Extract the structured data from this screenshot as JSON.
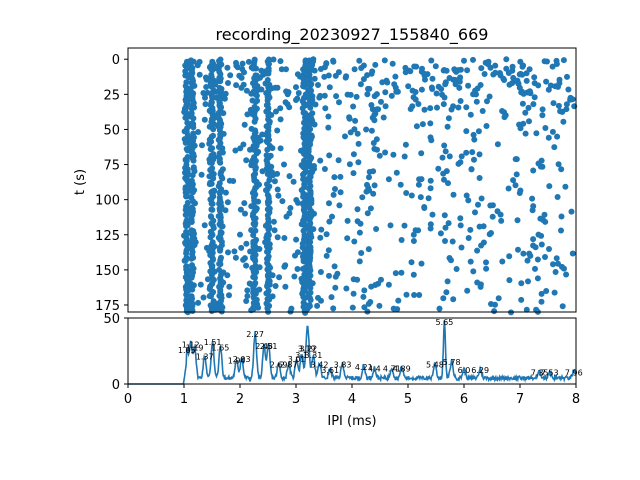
{
  "chart_data": [
    {
      "type": "scatter",
      "title": "recording_20230927_155840_669",
      "xlabel": "",
      "ylabel": "t (s)",
      "xlim": [
        0,
        8
      ],
      "ylim": [
        180,
        -8
      ],
      "y_inverted": true,
      "yticks": [
        0,
        25,
        50,
        75,
        100,
        125,
        150,
        175
      ],
      "color": "#1f77b4",
      "marker": "circle",
      "note": "scatter of inter-pulse intervals over time; dense columns near IPI 1.05, 1.5, 2.27, 3.2 ms",
      "dense_columns_ms": [
        1.05,
        1.15,
        1.5,
        1.65,
        2.27,
        2.5,
        3.15,
        3.25
      ]
    },
    {
      "type": "line",
      "title": "",
      "xlabel": "IPI (ms)",
      "ylabel": "",
      "xlim": [
        0,
        8
      ],
      "ylim": [
        0,
        50
      ],
      "xticks": [
        0,
        1,
        2,
        3,
        4,
        5,
        6,
        7,
        8
      ],
      "yticks": [
        0,
        50
      ],
      "color": "#1f77b4",
      "peaks": [
        {
          "x": 1.05,
          "y": 22
        },
        {
          "x": 1.12,
          "y": 26
        },
        {
          "x": 1.19,
          "y": 24
        },
        {
          "x": 1.37,
          "y": 17
        },
        {
          "x": 1.51,
          "y": 28
        },
        {
          "x": 1.65,
          "y": 24
        },
        {
          "x": 1.94,
          "y": 14
        },
        {
          "x": 2.03,
          "y": 15
        },
        {
          "x": 2.27,
          "y": 34
        },
        {
          "x": 2.43,
          "y": 25
        },
        {
          "x": 2.51,
          "y": 25
        },
        {
          "x": 2.69,
          "y": 11
        },
        {
          "x": 2.87,
          "y": 11
        },
        {
          "x": 3.01,
          "y": 15
        },
        {
          "x": 3.1,
          "y": 18
        },
        {
          "x": 3.19,
          "y": 23
        },
        {
          "x": 3.22,
          "y": 23
        },
        {
          "x": 3.31,
          "y": 18
        },
        {
          "x": 3.42,
          "y": 11
        },
        {
          "x": 3.61,
          "y": 7
        },
        {
          "x": 3.83,
          "y": 11
        },
        {
          "x": 4.21,
          "y": 9
        },
        {
          "x": 4.4,
          "y": 8
        },
        {
          "x": 4.71,
          "y": 8
        },
        {
          "x": 4.89,
          "y": 8
        },
        {
          "x": 5.48,
          "y": 11
        },
        {
          "x": 5.65,
          "y": 43
        },
        {
          "x": 5.78,
          "y": 13
        },
        {
          "x": 6.0,
          "y": 7
        },
        {
          "x": 6.29,
          "y": 7
        },
        {
          "x": 7.35,
          "y": 5
        },
        {
          "x": 7.53,
          "y": 5
        },
        {
          "x": 7.96,
          "y": 5
        }
      ],
      "peak_labels": [
        {
          "x": 1.05,
          "text": "1.05"
        },
        {
          "x": 1.12,
          "text": "1.12"
        },
        {
          "x": 1.19,
          "text": "1.19"
        },
        {
          "x": 1.37,
          "text": "1.37"
        },
        {
          "x": 1.51,
          "text": "1.51"
        },
        {
          "x": 1.65,
          "text": "1.65"
        },
        {
          "x": 1.94,
          "text": "1.94"
        },
        {
          "x": 2.03,
          "text": "2.03"
        },
        {
          "x": 2.27,
          "text": "2.27"
        },
        {
          "x": 2.43,
          "text": "2.43"
        },
        {
          "x": 2.51,
          "text": "2.51"
        },
        {
          "x": 2.69,
          "text": "2.69"
        },
        {
          "x": 2.87,
          "text": "2.87"
        },
        {
          "x": 3.01,
          "text": "3.01"
        },
        {
          "x": 3.1,
          "text": "3.1"
        },
        {
          "x": 3.19,
          "text": "3.19"
        },
        {
          "x": 3.22,
          "text": "3.22"
        },
        {
          "x": 3.31,
          "text": "3.31"
        },
        {
          "x": 3.42,
          "text": "3.42"
        },
        {
          "x": 3.61,
          "text": "3.61"
        },
        {
          "x": 3.83,
          "text": "3.83"
        },
        {
          "x": 4.21,
          "text": "4.21"
        },
        {
          "x": 4.4,
          "text": "4.4"
        },
        {
          "x": 4.71,
          "text": "4.71"
        },
        {
          "x": 4.89,
          "text": "4.89"
        },
        {
          "x": 5.48,
          "text": "5.48"
        },
        {
          "x": 5.65,
          "text": "5.65"
        },
        {
          "x": 5.78,
          "text": "5.78"
        },
        {
          "x": 6.0,
          "text": "6.0"
        },
        {
          "x": 6.29,
          "text": "6.29"
        },
        {
          "x": 7.35,
          "text": "7.35"
        },
        {
          "x": 7.53,
          "text": "7.53"
        },
        {
          "x": 7.96,
          "text": "7.96"
        }
      ]
    }
  ]
}
